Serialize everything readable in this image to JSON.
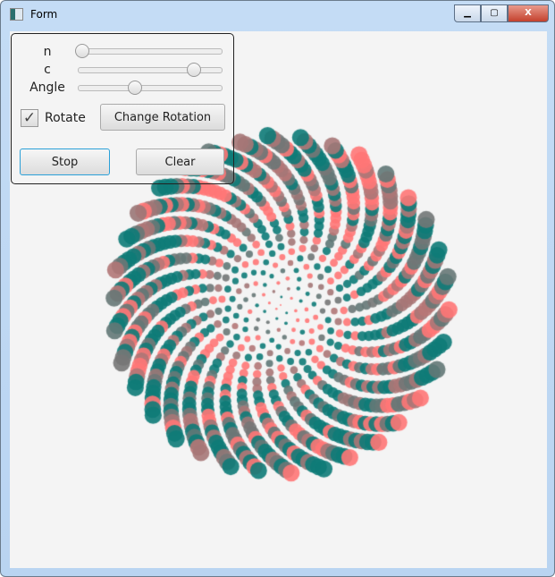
{
  "window": {
    "title": "Form",
    "minimize": "▁",
    "maximize": "▢",
    "close": "X"
  },
  "controls": {
    "n": {
      "label": "n",
      "value": 0.0
    },
    "c": {
      "label": "c",
      "value": 0.8
    },
    "angle": {
      "label": "Angle",
      "value": 0.39
    },
    "rotate": {
      "label": "Rotate",
      "checked": true,
      "mark": "✓"
    },
    "change_rotation": "Change Rotation",
    "stop": "Stop",
    "clear": "Clear"
  },
  "colors": {
    "teal": "#0e7b78",
    "salmon": "#ff7777",
    "gray": "#777777",
    "focus": "#2aa0d8"
  }
}
